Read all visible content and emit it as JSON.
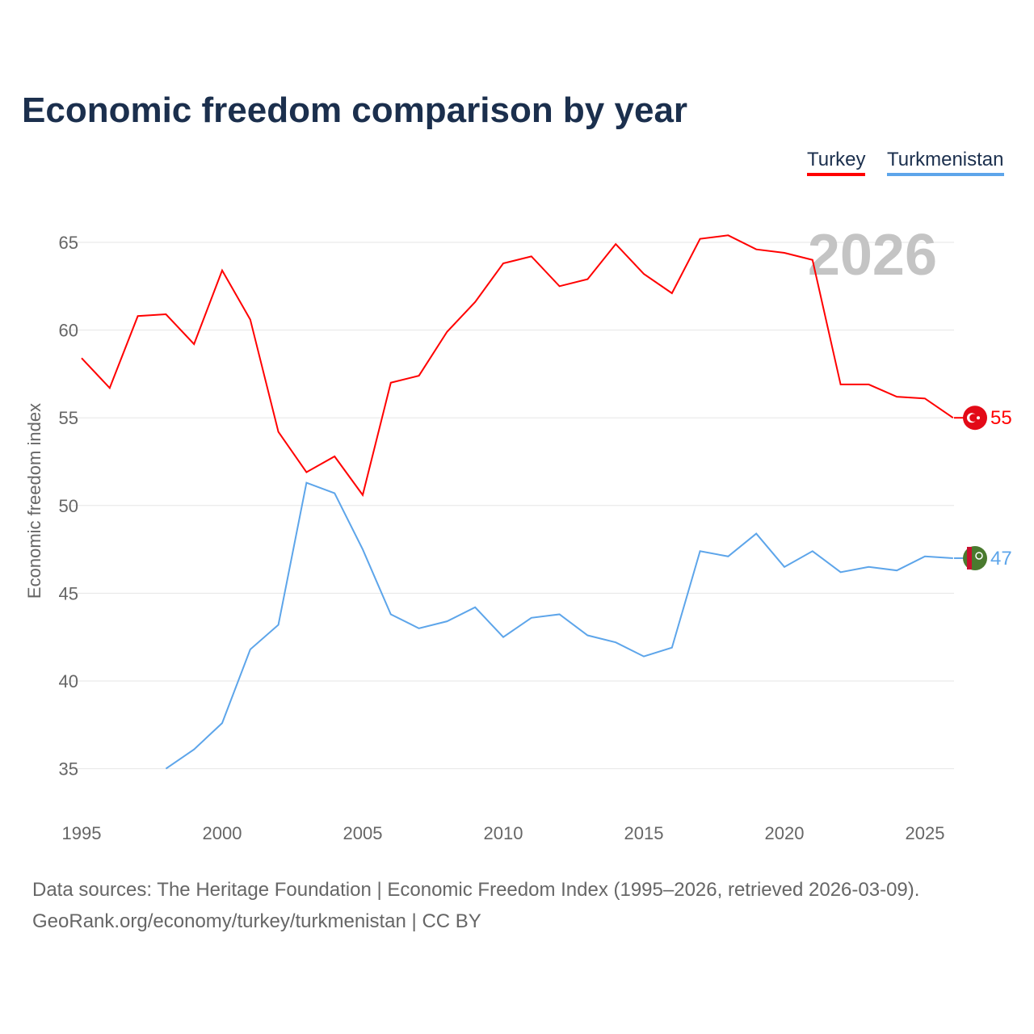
{
  "chart_data": {
    "type": "line",
    "title": "Economic freedom comparison by year",
    "ylabel": "Economic freedom index",
    "xlabel": "",
    "year_label": "2026",
    "ylim": [
      33,
      67
    ],
    "xlim": [
      1995,
      2026
    ],
    "yticks": [
      35,
      40,
      45,
      50,
      55,
      60,
      65
    ],
    "xticks": [
      1995,
      2000,
      2005,
      2010,
      2015,
      2020,
      2025
    ],
    "legend_position": "top-right",
    "series": [
      {
        "name": "Turkey",
        "color": "#ff0000",
        "end_label": "55",
        "x": [
          1995,
          1996,
          1997,
          1998,
          1999,
          2000,
          2001,
          2002,
          2003,
          2004,
          2005,
          2006,
          2007,
          2008,
          2009,
          2010,
          2011,
          2012,
          2013,
          2014,
          2015,
          2016,
          2017,
          2018,
          2019,
          2020,
          2021,
          2022,
          2023,
          2024,
          2025,
          2026
        ],
        "values": [
          58.4,
          56.7,
          60.8,
          60.9,
          59.2,
          63.4,
          60.6,
          54.2,
          51.9,
          52.8,
          50.6,
          57.0,
          57.4,
          59.9,
          61.6,
          63.8,
          64.2,
          62.5,
          62.9,
          64.9,
          63.2,
          62.1,
          65.2,
          65.4,
          64.6,
          64.4,
          64.0,
          56.9,
          56.9,
          56.2,
          56.1,
          55.0
        ]
      },
      {
        "name": "Turkmenistan",
        "color": "#5da5ea",
        "end_label": "47",
        "x": [
          1998,
          1999,
          2000,
          2001,
          2002,
          2003,
          2004,
          2005,
          2006,
          2007,
          2008,
          2009,
          2010,
          2011,
          2012,
          2013,
          2014,
          2015,
          2016,
          2017,
          2018,
          2019,
          2020,
          2021,
          2022,
          2023,
          2024,
          2025,
          2026
        ],
        "values": [
          35.0,
          36.1,
          37.6,
          41.8,
          43.2,
          51.3,
          50.7,
          47.5,
          43.8,
          43.0,
          43.4,
          44.2,
          42.5,
          43.6,
          43.8,
          42.6,
          42.2,
          41.4,
          41.9,
          47.4,
          47.1,
          48.4,
          46.5,
          47.4,
          46.2,
          46.5,
          46.3,
          47.1,
          47.0
        ]
      }
    ]
  },
  "footer": {
    "line1": "Data sources: The Heritage Foundation | Economic Freedom Index (1995–2026, retrieved 2026-03-09).",
    "line2": "GeoRank.org/economy/turkey/turkmenistan | CC BY"
  }
}
